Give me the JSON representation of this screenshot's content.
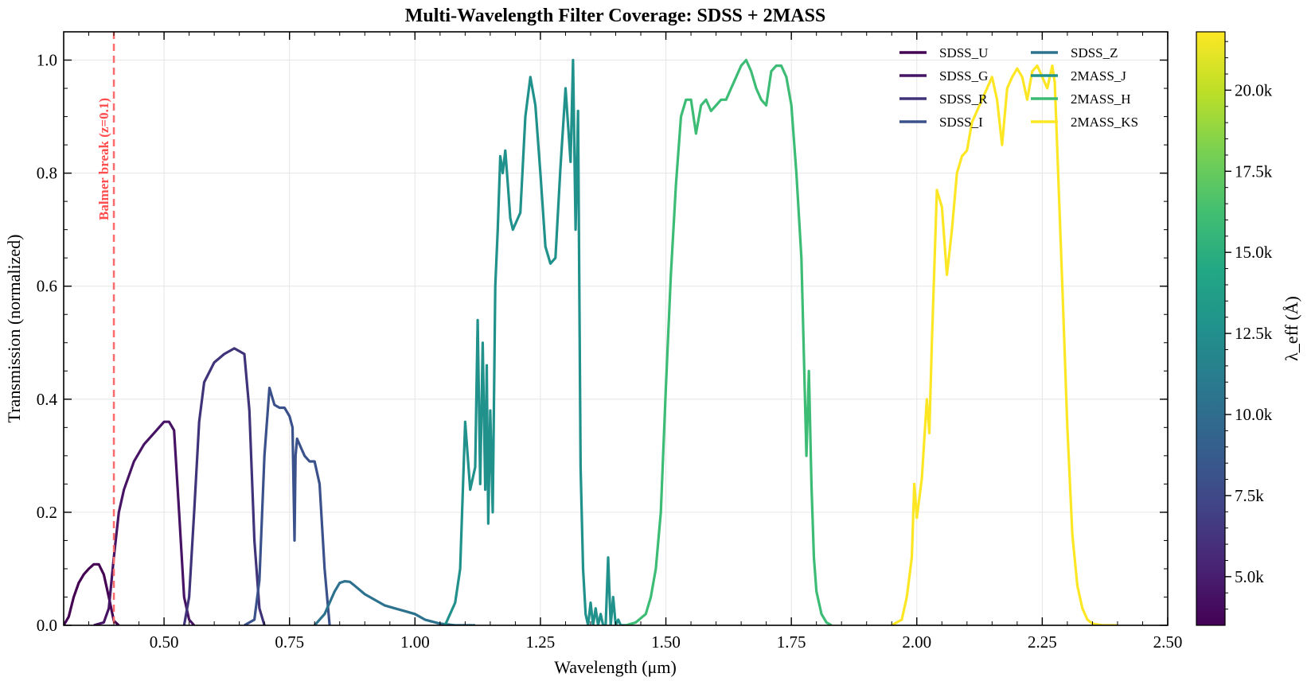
{
  "chart_data": {
    "type": "line",
    "title": "Multi-Wavelength Filter Coverage: SDSS + 2MASS",
    "xlabel": "Wavelength (μm)",
    "ylabel": "Transmission (normalized)",
    "xlim": [
      0.3,
      2.5
    ],
    "ylim": [
      0.0,
      1.05
    ],
    "x_ticks": [
      "0.50",
      "0.75",
      "1.00",
      "1.25",
      "1.50",
      "1.75",
      "2.00",
      "2.25",
      "2.50"
    ],
    "y_ticks": [
      "0.0",
      "0.2",
      "0.4",
      "0.6",
      "0.8",
      "1.0"
    ],
    "grid": true,
    "legend": "top-right",
    "colorbar": {
      "label": "λ_eff (Å)",
      "colormap": "viridis",
      "range": [
        3500,
        21800
      ],
      "ticks": [
        {
          "value": 5000,
          "label": "5.0k"
        },
        {
          "value": 7500,
          "label": "7.5k"
        },
        {
          "value": 10000,
          "label": "10.0k"
        },
        {
          "value": 12500,
          "label": "12.5k"
        },
        {
          "value": 15000,
          "label": "15.0k"
        },
        {
          "value": 17500,
          "label": "17.5k"
        },
        {
          "value": 20000,
          "label": "20.0k"
        }
      ]
    },
    "annotation": {
      "text": "Balmer break (z=0.1)",
      "x": 0.4,
      "color": "#ff6b6b"
    },
    "series": [
      {
        "name": "SDSS_U",
        "color": "#440154",
        "x": [
          0.3,
          0.31,
          0.32,
          0.33,
          0.34,
          0.35,
          0.36,
          0.37,
          0.38,
          0.39,
          0.4,
          0.41
        ],
        "y": [
          0.0,
          0.015,
          0.05,
          0.075,
          0.09,
          0.1,
          0.108,
          0.108,
          0.09,
          0.05,
          0.008,
          0.0
        ]
      },
      {
        "name": "SDSS_G",
        "color": "#471365",
        "x": [
          0.36,
          0.38,
          0.39,
          0.4,
          0.41,
          0.42,
          0.44,
          0.46,
          0.48,
          0.49,
          0.5,
          0.51,
          0.52,
          0.53,
          0.54,
          0.55,
          0.56
        ],
        "y": [
          0.0,
          0.005,
          0.03,
          0.12,
          0.2,
          0.24,
          0.29,
          0.32,
          0.34,
          0.35,
          0.36,
          0.36,
          0.345,
          0.2,
          0.05,
          0.01,
          0.0
        ]
      },
      {
        "name": "SDSS_R",
        "color": "#41337a",
        "x": [
          0.54,
          0.55,
          0.56,
          0.57,
          0.58,
          0.6,
          0.62,
          0.64,
          0.66,
          0.67,
          0.68,
          0.69,
          0.7
        ],
        "y": [
          0.0,
          0.05,
          0.2,
          0.36,
          0.43,
          0.465,
          0.48,
          0.49,
          0.48,
          0.38,
          0.15,
          0.03,
          0.0
        ]
      },
      {
        "name": "SDSS_I",
        "color": "#3b518b",
        "x": [
          0.66,
          0.68,
          0.69,
          0.7,
          0.71,
          0.72,
          0.73,
          0.74,
          0.75,
          0.756,
          0.76,
          0.762,
          0.765,
          0.77,
          0.78,
          0.79,
          0.8,
          0.81,
          0.82,
          0.83
        ],
        "y": [
          0.0,
          0.01,
          0.08,
          0.3,
          0.42,
          0.39,
          0.385,
          0.385,
          0.37,
          0.35,
          0.15,
          0.3,
          0.33,
          0.32,
          0.3,
          0.29,
          0.29,
          0.25,
          0.1,
          0.0
        ]
      },
      {
        "name": "SDSS_Z",
        "color": "#2c728e",
        "x": [
          0.8,
          0.82,
          0.84,
          0.85,
          0.86,
          0.87,
          0.88,
          0.9,
          0.92,
          0.94,
          0.96,
          0.98,
          1.0,
          1.02,
          1.05,
          1.08,
          1.1,
          1.12
        ],
        "y": [
          0.0,
          0.02,
          0.06,
          0.075,
          0.078,
          0.077,
          0.07,
          0.055,
          0.045,
          0.035,
          0.03,
          0.025,
          0.02,
          0.01,
          0.003,
          0.0,
          0.0,
          0.0
        ]
      },
      {
        "name": "2MASS_J",
        "color": "#21918c",
        "x": [
          1.06,
          1.08,
          1.09,
          1.1,
          1.11,
          1.12,
          1.125,
          1.13,
          1.135,
          1.14,
          1.143,
          1.146,
          1.15,
          1.155,
          1.16,
          1.165,
          1.17,
          1.175,
          1.18,
          1.185,
          1.19,
          1.195,
          1.2,
          1.21,
          1.22,
          1.23,
          1.24,
          1.25,
          1.26,
          1.27,
          1.28,
          1.29,
          1.3,
          1.31,
          1.315,
          1.32,
          1.325,
          1.33,
          1.335,
          1.34,
          1.345,
          1.35,
          1.355,
          1.36,
          1.365,
          1.37,
          1.375,
          1.38,
          1.385,
          1.39,
          1.395,
          1.4,
          1.405,
          1.41,
          1.42
        ],
        "y": [
          0.0,
          0.04,
          0.1,
          0.36,
          0.24,
          0.28,
          0.54,
          0.25,
          0.5,
          0.24,
          0.46,
          0.18,
          0.38,
          0.2,
          0.6,
          0.7,
          0.83,
          0.8,
          0.84,
          0.78,
          0.72,
          0.7,
          0.71,
          0.73,
          0.9,
          0.97,
          0.92,
          0.8,
          0.67,
          0.64,
          0.65,
          0.81,
          0.95,
          0.82,
          1.0,
          0.7,
          0.91,
          0.28,
          0.1,
          0.02,
          0.0,
          0.04,
          0.0,
          0.03,
          0.0,
          0.02,
          0.0,
          0.0,
          0.12,
          0.0,
          0.05,
          0.0,
          0.01,
          0.0,
          0.0
        ]
      },
      {
        "name": "2MASS_H",
        "color": "#3cbc74",
        "x": [
          1.42,
          1.44,
          1.46,
          1.47,
          1.48,
          1.49,
          1.5,
          1.51,
          1.52,
          1.53,
          1.54,
          1.55,
          1.56,
          1.57,
          1.58,
          1.59,
          1.6,
          1.61,
          1.62,
          1.63,
          1.64,
          1.65,
          1.66,
          1.67,
          1.68,
          1.69,
          1.7,
          1.71,
          1.72,
          1.73,
          1.74,
          1.75,
          1.76,
          1.77,
          1.78,
          1.785,
          1.79,
          1.795,
          1.8,
          1.81,
          1.82,
          1.83
        ],
        "y": [
          0.0,
          0.005,
          0.02,
          0.05,
          0.1,
          0.2,
          0.42,
          0.62,
          0.78,
          0.9,
          0.93,
          0.93,
          0.87,
          0.92,
          0.93,
          0.91,
          0.92,
          0.93,
          0.93,
          0.95,
          0.97,
          0.99,
          1.0,
          0.98,
          0.95,
          0.93,
          0.92,
          0.98,
          0.99,
          0.99,
          0.97,
          0.92,
          0.8,
          0.65,
          0.3,
          0.45,
          0.25,
          0.12,
          0.06,
          0.02,
          0.005,
          0.0
        ]
      },
      {
        "name": "2MASS_KS",
        "color": "#fde725",
        "x": [
          1.95,
          1.97,
          1.98,
          1.99,
          1.995,
          2.0,
          2.01,
          2.02,
          2.025,
          2.03,
          2.04,
          2.05,
          2.06,
          2.07,
          2.08,
          2.09,
          2.1,
          2.11,
          2.12,
          2.13,
          2.14,
          2.15,
          2.16,
          2.17,
          2.18,
          2.19,
          2.2,
          2.21,
          2.22,
          2.23,
          2.24,
          2.25,
          2.26,
          2.27,
          2.275,
          2.28,
          2.29,
          2.3,
          2.31,
          2.32,
          2.33,
          2.34,
          2.35,
          2.37,
          2.4
        ],
        "y": [
          0.0,
          0.01,
          0.05,
          0.12,
          0.25,
          0.19,
          0.26,
          0.4,
          0.34,
          0.5,
          0.77,
          0.74,
          0.62,
          0.7,
          0.8,
          0.83,
          0.84,
          0.89,
          0.91,
          0.93,
          0.95,
          0.97,
          0.93,
          0.85,
          0.95,
          0.97,
          0.985,
          0.97,
          0.93,
          0.98,
          0.99,
          0.97,
          0.95,
          0.99,
          0.96,
          0.84,
          0.6,
          0.35,
          0.16,
          0.07,
          0.03,
          0.01,
          0.003,
          0.0,
          0.0
        ]
      }
    ]
  }
}
